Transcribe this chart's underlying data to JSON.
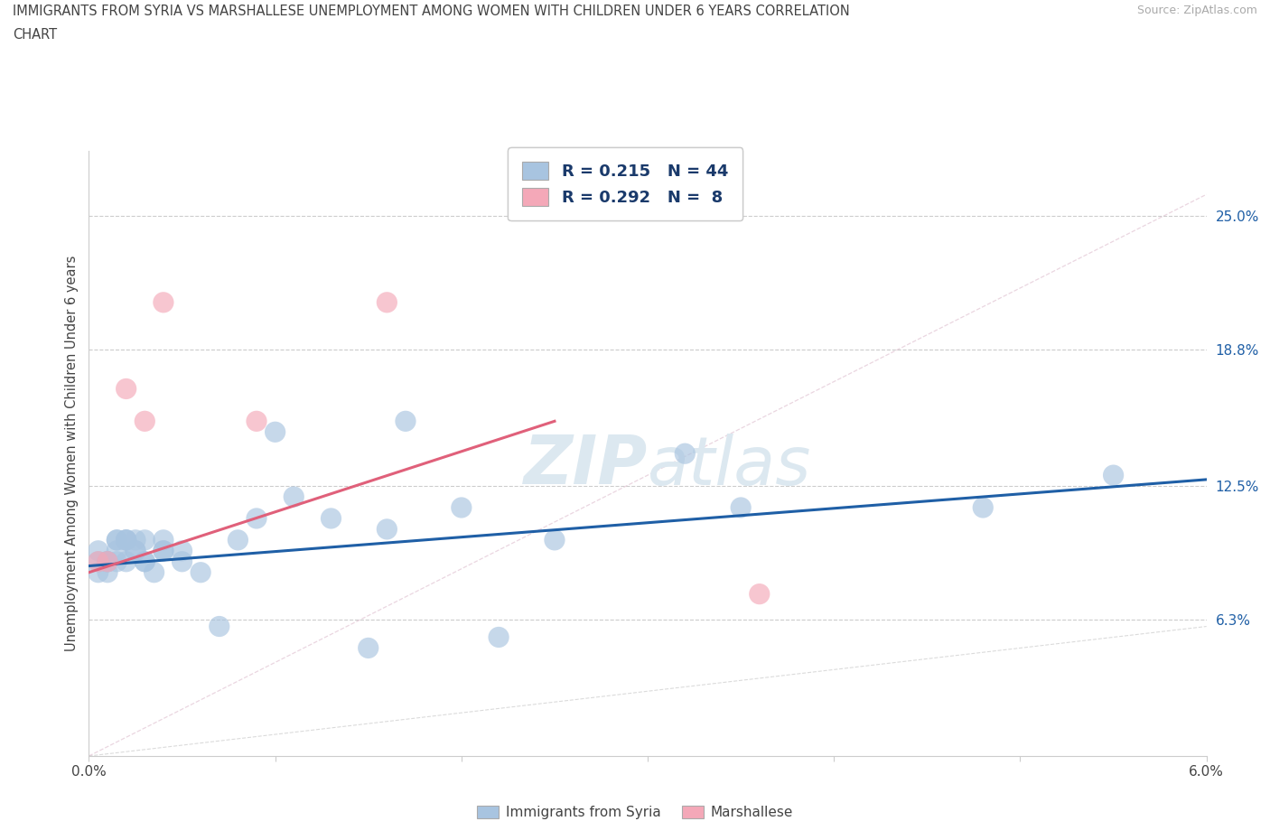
{
  "title_line1": "IMMIGRANTS FROM SYRIA VS MARSHALLESE UNEMPLOYMENT AMONG WOMEN WITH CHILDREN UNDER 6 YEARS CORRELATION",
  "title_line2": "CHART",
  "source": "Source: ZipAtlas.com",
  "ylabel": "Unemployment Among Women with Children Under 6 years",
  "xlim": [
    0.0,
    0.06
  ],
  "ylim": [
    0.0,
    0.28
  ],
  "ytick_labels_right": [
    "6.3%",
    "12.5%",
    "18.8%",
    "25.0%"
  ],
  "ytick_vals_right": [
    0.063,
    0.125,
    0.188,
    0.25
  ],
  "gridline_y": [
    0.063,
    0.125,
    0.188,
    0.25
  ],
  "syria_color": "#a8c4e0",
  "marshall_color": "#f4a8b8",
  "trendline_syria_color": "#1f5fa6",
  "trendline_marshall_color": "#e0607a",
  "trendline_dashed_color": "#cccccc",
  "R_syria": 0.215,
  "N_syria": 44,
  "R_marshall": 0.292,
  "N_marshall": 8,
  "legend_text_color": "#1a3a6b",
  "syria_x": [
    0.0005,
    0.0005,
    0.0005,
    0.001,
    0.001,
    0.001,
    0.001,
    0.0015,
    0.0015,
    0.0015,
    0.0015,
    0.002,
    0.002,
    0.002,
    0.002,
    0.0025,
    0.0025,
    0.0025,
    0.003,
    0.003,
    0.003,
    0.0035,
    0.004,
    0.004,
    0.004,
    0.005,
    0.005,
    0.006,
    0.007,
    0.008,
    0.009,
    0.01,
    0.011,
    0.013,
    0.015,
    0.016,
    0.017,
    0.02,
    0.022,
    0.025,
    0.032,
    0.035,
    0.048,
    0.055
  ],
  "syria_y": [
    0.095,
    0.09,
    0.085,
    0.09,
    0.09,
    0.09,
    0.085,
    0.09,
    0.095,
    0.1,
    0.1,
    0.09,
    0.1,
    0.1,
    0.1,
    0.095,
    0.1,
    0.095,
    0.1,
    0.09,
    0.09,
    0.085,
    0.1,
    0.095,
    0.095,
    0.095,
    0.09,
    0.085,
    0.06,
    0.1,
    0.11,
    0.15,
    0.12,
    0.11,
    0.05,
    0.105,
    0.155,
    0.115,
    0.055,
    0.1,
    0.14,
    0.115,
    0.115,
    0.13
  ],
  "marshall_x": [
    0.0005,
    0.001,
    0.002,
    0.003,
    0.004,
    0.009,
    0.016,
    0.036
  ],
  "marshall_y": [
    0.09,
    0.09,
    0.17,
    0.155,
    0.21,
    0.155,
    0.21,
    0.075
  ],
  "trendline_syria_x0": 0.0,
  "trendline_syria_x1": 0.06,
  "trendline_syria_y0": 0.088,
  "trendline_syria_y1": 0.128,
  "trendline_marshall_x0": 0.0,
  "trendline_marshall_x1": 0.025,
  "trendline_marshall_y0": 0.085,
  "trendline_marshall_y1": 0.155
}
